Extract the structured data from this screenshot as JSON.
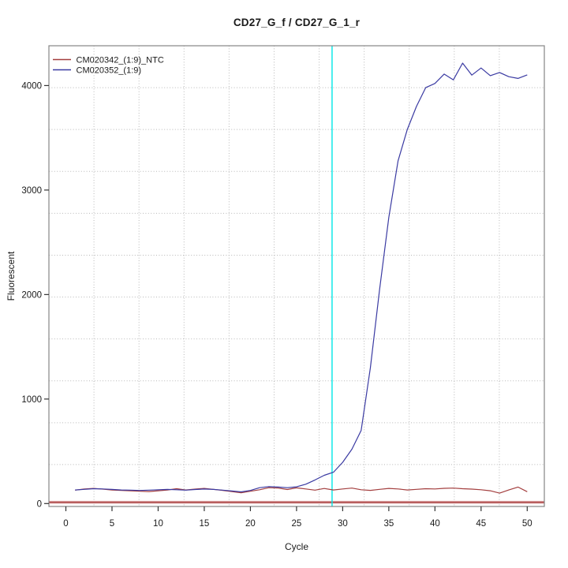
{
  "window": {
    "title": "CD27_G_f / CD27_G_1_r"
  },
  "chart_data": {
    "type": "line",
    "title": "CD27_G_f / CD27_G_1_r",
    "xlabel": "Cycle",
    "ylabel": "Fluorescent",
    "xlim": [
      0,
      50
    ],
    "ylim": [
      0,
      4380
    ],
    "x_ticks": [
      0,
      5,
      10,
      15,
      20,
      25,
      30,
      35,
      40,
      45,
      50
    ],
    "y_ticks": [
      0,
      1000,
      2000,
      3000,
      4000
    ],
    "grid": {
      "style": "dotted",
      "color": "#b8b8b8",
      "interior_lines": 10
    },
    "legend_position": "top-left",
    "x": [
      1,
      2,
      3,
      4,
      5,
      6,
      7,
      8,
      9,
      10,
      11,
      12,
      13,
      14,
      15,
      16,
      17,
      18,
      19,
      20,
      21,
      22,
      23,
      24,
      25,
      26,
      27,
      28,
      29,
      30,
      31,
      32,
      33,
      34,
      35,
      36,
      37,
      38,
      39,
      40,
      41,
      42,
      43,
      44,
      45,
      46,
      47,
      48,
      49,
      50
    ],
    "series": [
      {
        "name": "CM020342_(1:9)_NTC",
        "color": "#a33e3e",
        "values": [
          128,
          140,
          145,
          138,
          130,
          125,
          122,
          118,
          115,
          122,
          130,
          142,
          130,
          138,
          145,
          136,
          126,
          115,
          103,
          118,
          132,
          152,
          148,
          134,
          150,
          140,
          128,
          144,
          130,
          140,
          148,
          132,
          126,
          136,
          145,
          140,
          130,
          136,
          142,
          140,
          146,
          148,
          142,
          138,
          132,
          122,
          100,
          130,
          158,
          113
        ]
      },
      {
        "name": "CM020352_(1:9)",
        "color": "#3a3aa2",
        "values": [
          130,
          136,
          142,
          140,
          135,
          130,
          128,
          125,
          128,
          132,
          135,
          132,
          128,
          134,
          139,
          135,
          128,
          120,
          112,
          125,
          152,
          162,
          158,
          152,
          160,
          185,
          226,
          270,
          300,
          395,
          520,
          700,
          1300,
          2050,
          2740,
          3280,
          3580,
          3800,
          3980,
          4020,
          4110,
          4055,
          4215,
          4100,
          4168,
          4095,
          4125,
          4085,
          4068,
          4102
        ]
      }
    ],
    "threshold_line": {
      "value": 12,
      "color": "#a84040",
      "halo_color": "#dfa8a8"
    },
    "ct_line": {
      "cycle": 28.85,
      "color": "#00e8e8"
    }
  }
}
